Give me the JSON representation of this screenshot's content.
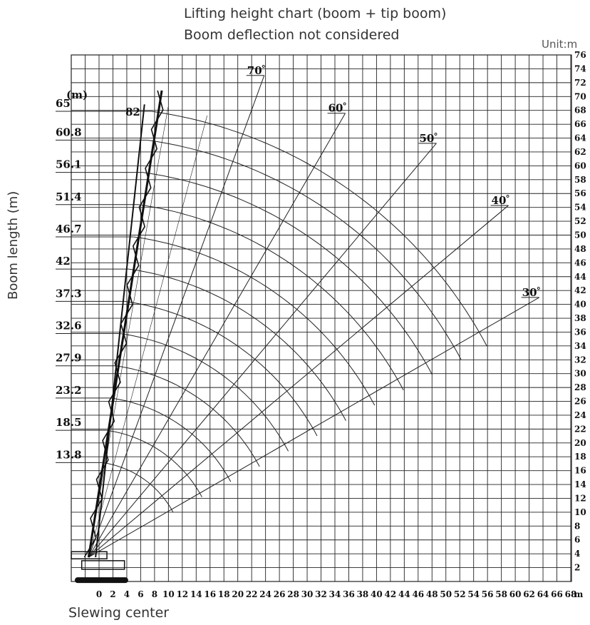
{
  "title_line1": "Lifting height chart (boom + tip boom)",
  "title_line2": "Boom deflection not considered",
  "unit_label": "Unit:m",
  "y_axis_title": "Boom length (m)",
  "x_origin_label": "Slewing center",
  "colors": {
    "line": "#222222",
    "grid": "#222222",
    "crane": "#111111"
  },
  "chart_data": {
    "type": "line",
    "title": "Lifting height chart (boom + tip boom)",
    "subtitle": "Boom deflection not considered",
    "ylabel": "Boom length (m)",
    "xlabel": "Slewing center",
    "x_unit_label": "m",
    "boom_length_unit": "(m)",
    "xlim": [
      -4,
      68
    ],
    "ylim": [
      0,
      76
    ],
    "grid": true,
    "x_ticks": [
      0,
      2,
      4,
      6,
      8,
      10,
      12,
      14,
      16,
      18,
      20,
      22,
      24,
      26,
      28,
      30,
      32,
      34,
      36,
      38,
      40,
      42,
      44,
      46,
      48,
      50,
      52,
      54,
      56,
      58,
      60,
      62,
      64,
      66,
      68
    ],
    "y_ticks": [
      2,
      4,
      6,
      8,
      10,
      12,
      14,
      16,
      18,
      20,
      22,
      24,
      26,
      28,
      30,
      32,
      34,
      36,
      38,
      40,
      42,
      44,
      46,
      48,
      50,
      52,
      54,
      56,
      58,
      60,
      62,
      64,
      66,
      68,
      70,
      72,
      74,
      76
    ],
    "pivot": {
      "x": -1.5,
      "y": 3.5
    },
    "boom_lengths": [
      13.8,
      18.5,
      23.2,
      27.9,
      32.6,
      37.3,
      42,
      46.7,
      51.4,
      56.1,
      60.8,
      65
    ],
    "max_angle_label": "82",
    "angle_lines": [
      {
        "label": "70",
        "angle": 70
      },
      {
        "label": "60",
        "angle": 60
      },
      {
        "label": "50",
        "angle": 50
      },
      {
        "label": "40",
        "angle": 40
      },
      {
        "label": "30",
        "angle": 30
      }
    ],
    "degree_symbol": "°"
  }
}
